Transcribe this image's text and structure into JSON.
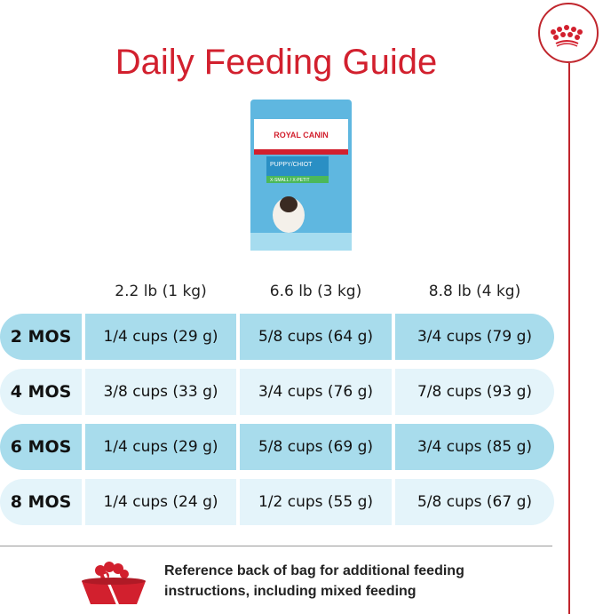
{
  "title": "Daily Feeding Guide",
  "brand": "ROYAL CANIN",
  "product_label": "PUPPY/CHIOT",
  "product_sublabel": "X-SMALL / X-PETIT",
  "colors": {
    "red": "#d2202e",
    "row_dark": "#a8dcec",
    "row_light": "#e4f4fa"
  },
  "columns": [
    "2.2 lb (1 kg)",
    "6.6 lb (3 kg)",
    "8.8 lb (4 kg)"
  ],
  "rows": [
    {
      "age": "2 MOS",
      "values": [
        "1/4 cups (29 g)",
        "5/8 cups (64 g)",
        "3/4 cups (79 g)"
      ]
    },
    {
      "age": "4 MOS",
      "values": [
        "3/8 cups (33 g)",
        "3/4 cups (76 g)",
        "7/8 cups (93 g)"
      ]
    },
    {
      "age": "6 MOS",
      "values": [
        "1/4 cups (29 g)",
        "5/8 cups (69 g)",
        "3/4 cups (85 g)"
      ]
    },
    {
      "age": "8 MOS",
      "values": [
        "1/4 cups (24 g)",
        "1/2 cups (55 g)",
        "5/8 cups (67 g)"
      ]
    }
  ],
  "footer": {
    "line1": "Reference back of bag for additional feeding",
    "line2": "instructions, including mixed feeding"
  }
}
